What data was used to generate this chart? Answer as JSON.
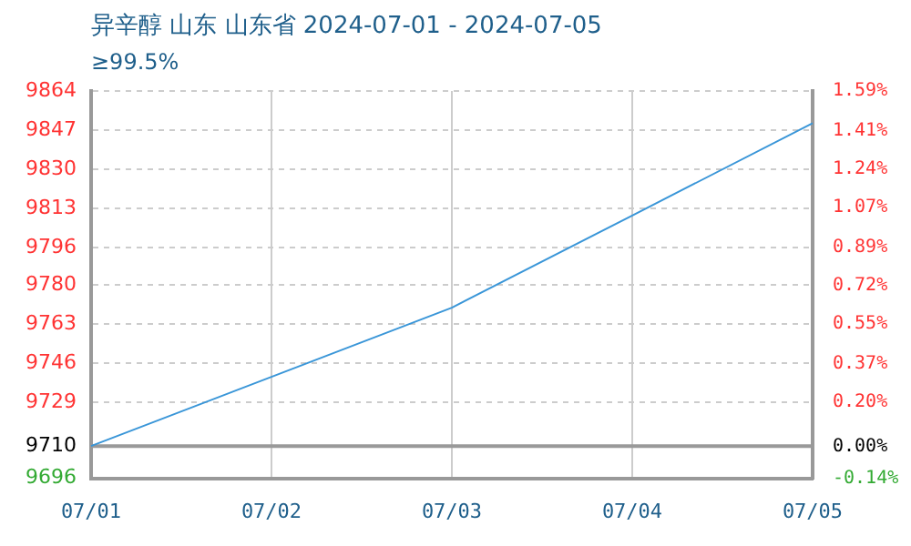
{
  "chart_data": {
    "type": "line",
    "title": "异辛醇 山东 山东省 2024-07-01 - 2024-07-05",
    "subtitle": "≥99.5%",
    "categories": [
      "07/01",
      "07/02",
      "07/03",
      "07/04",
      "07/05"
    ],
    "series": [
      {
        "color": "#3a96d8",
        "values": [
          9710,
          9740,
          9770,
          9810,
          9850
        ]
      }
    ],
    "ylim": [
      9696,
      9864
    ],
    "yticks": [
      9696,
      9710,
      9729,
      9746,
      9763,
      9780,
      9796,
      9813,
      9830,
      9847,
      9864
    ],
    "y2lim": [
      -0.14,
      1.59
    ],
    "y2ticks": [
      {
        "value": -0.14,
        "label": "-0.14%"
      },
      {
        "value": 0,
        "label": "0.00%"
      },
      {
        "value": 0.2,
        "label": "0.20%"
      },
      {
        "value": 0.37,
        "label": "0.37%"
      },
      {
        "value": 0.55,
        "label": "0.55%"
      },
      {
        "value": 0.72,
        "label": "0.72%"
      },
      {
        "value": 0.89,
        "label": "0.89%"
      },
      {
        "value": 1.07,
        "label": "1.07%"
      },
      {
        "value": 1.24,
        "label": "1.24%"
      },
      {
        "value": 1.41,
        "label": "1.41%"
      },
      {
        "value": 1.59,
        "label": "1.59%"
      }
    ],
    "ref_lines": [
      {
        "axis": "y",
        "value": 9710,
        "color": "#999999",
        "line_style": "solid"
      }
    ],
    "grid": true,
    "legend": false,
    "marker": "none",
    "line_style": "solid"
  }
}
